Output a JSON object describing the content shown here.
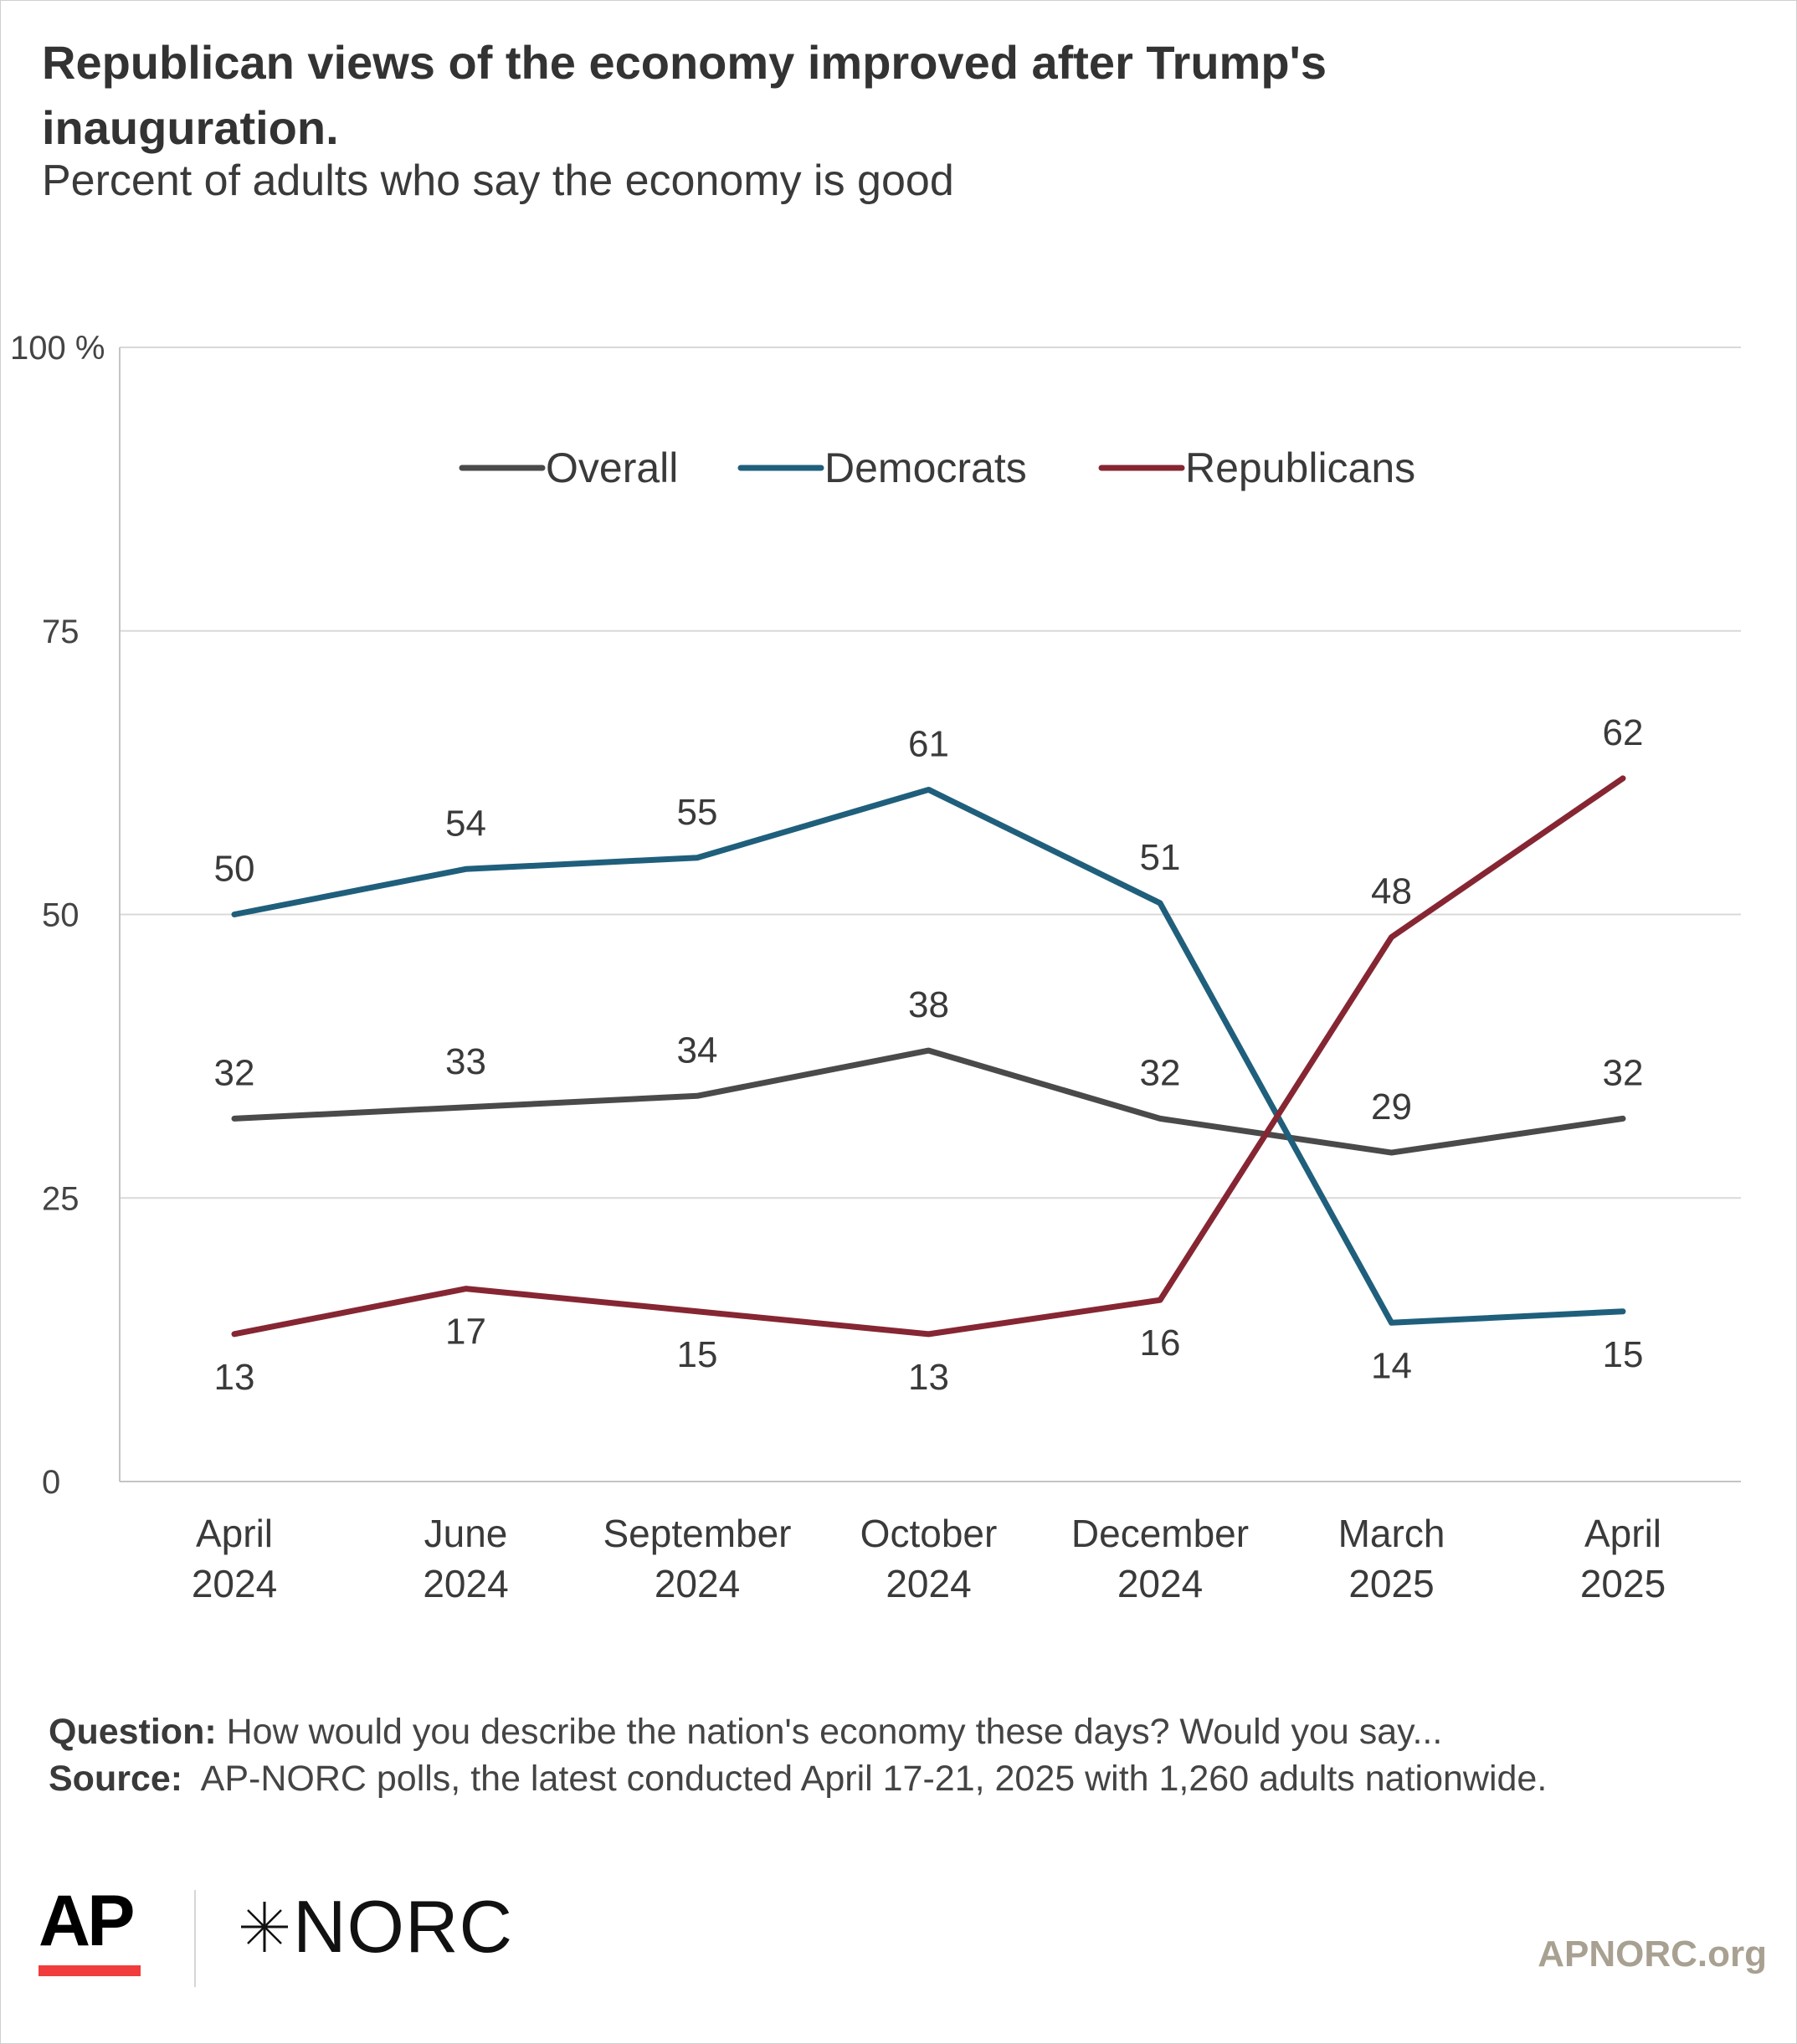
{
  "title": "Republican views of the economy improved after Trump's inauguration.",
  "subtitle": "Percent of adults who say the economy is good",
  "footer": {
    "question_label": "Question:",
    "question_text": "How would you describe the nation's economy these days? Would you say...",
    "source_label": "Source:",
    "source_text": "AP-NORC polls, the latest conducted April 17-21, 2025 with 1,260 adults nationwide."
  },
  "logos": {
    "ap": "AP",
    "norc": "NORC",
    "site": "APNORC.org"
  },
  "colors": {
    "overall": "#4a4a4a",
    "democrats": "#1f5f7c",
    "republicans": "#862633",
    "grid": "#d9d9d9",
    "ap_red": "#f03c3c"
  },
  "chart_data": {
    "type": "line",
    "x": [
      "April 2024",
      "June 2024",
      "September 2024",
      "October 2024",
      "December 2024",
      "March 2025",
      "April 2025"
    ],
    "y_ticks": [
      "100 %",
      "75",
      "50",
      "25",
      "0"
    ],
    "ylim": [
      0,
      100
    ],
    "grid": true,
    "legend_position": "top-center",
    "series": [
      {
        "name": "Overall",
        "color": "#4a4a4a",
        "values": [
          32,
          33,
          34,
          38,
          32,
          29,
          32
        ]
      },
      {
        "name": "Democrats",
        "color": "#1f5f7c",
        "values": [
          50,
          54,
          55,
          61,
          51,
          14,
          15
        ]
      },
      {
        "name": "Republicans",
        "color": "#862633",
        "values": [
          13,
          17,
          15,
          13,
          16,
          48,
          62
        ]
      }
    ]
  }
}
